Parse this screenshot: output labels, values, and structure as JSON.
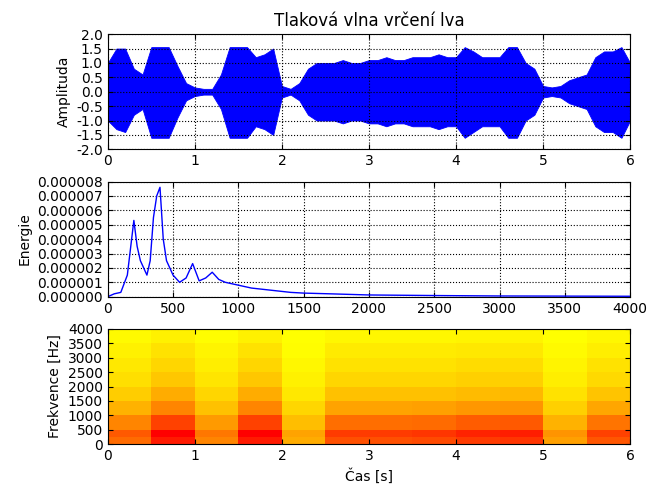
{
  "chart_data": [
    {
      "type": "area",
      "title": "Tlaková vlna vrčení lva",
      "y_label": "Amplituda",
      "color": "#0000ff",
      "grid": true,
      "x": [
        0.0,
        0.1,
        0.2,
        0.3,
        0.4,
        0.5,
        0.6,
        0.7,
        0.8,
        0.9,
        1.0,
        1.1,
        1.2,
        1.3,
        1.4,
        1.5,
        1.6,
        1.7,
        1.8,
        1.9,
        2.0,
        2.1,
        2.2,
        2.3,
        2.4,
        2.5,
        2.6,
        2.7,
        2.8,
        2.9,
        3.0,
        3.1,
        3.2,
        3.3,
        3.4,
        3.5,
        3.6,
        3.7,
        3.8,
        3.9,
        4.0,
        4.1,
        4.2,
        4.3,
        4.4,
        4.5,
        4.6,
        4.7,
        4.8,
        4.9,
        5.0,
        5.1,
        5.2,
        5.3,
        5.4,
        5.5,
        5.6,
        5.7,
        5.8,
        5.9,
        6.0
      ],
      "values": [
        1.0,
        1.5,
        1.5,
        0.8,
        0.6,
        1.55,
        1.55,
        1.55,
        0.9,
        0.3,
        0.15,
        0.1,
        0.1,
        0.6,
        1.55,
        1.55,
        1.55,
        1.2,
        1.3,
        1.5,
        0.2,
        0.1,
        0.3,
        0.8,
        1.0,
        1.0,
        1.0,
        1.1,
        1.0,
        1.0,
        1.1,
        1.1,
        1.2,
        1.1,
        1.1,
        1.2,
        1.2,
        1.2,
        1.3,
        1.2,
        1.2,
        1.55,
        1.4,
        1.2,
        1.2,
        1.2,
        1.55,
        1.55,
        1.0,
        0.8,
        0.2,
        0.15,
        0.2,
        0.4,
        0.5,
        0.6,
        1.2,
        1.4,
        1.4,
        1.55,
        1.0
      ],
      "lower": [
        -1.0,
        -1.3,
        -1.4,
        -0.8,
        -0.6,
        -1.6,
        -1.6,
        -1.6,
        -0.9,
        -0.3,
        -0.15,
        -0.1,
        -0.1,
        -0.6,
        -1.6,
        -1.6,
        -1.6,
        -1.2,
        -1.3,
        -1.5,
        -0.2,
        -0.1,
        -0.3,
        -0.8,
        -1.0,
        -1.0,
        -1.0,
        -1.1,
        -1.0,
        -1.0,
        -1.1,
        -1.1,
        -1.2,
        -1.1,
        -1.1,
        -1.2,
        -1.2,
        -1.2,
        -1.3,
        -1.2,
        -1.2,
        -1.6,
        -1.4,
        -1.2,
        -1.2,
        -1.2,
        -1.6,
        -1.6,
        -1.0,
        -0.8,
        -0.2,
        -0.15,
        -0.2,
        -0.4,
        -0.5,
        -0.6,
        -1.2,
        -1.4,
        -1.4,
        -1.6,
        -1.0
      ],
      "xlim": [
        0,
        6
      ],
      "xticks": [
        0,
        1,
        2,
        3,
        4,
        5,
        6
      ],
      "ylim": [
        -2.0,
        2.0
      ],
      "yticks": [
        {
          "value": -2.0,
          "label": "-2.0"
        },
        {
          "value": -1.5,
          "label": "-1.5"
        },
        {
          "value": -1.0,
          "label": "-1.0"
        },
        {
          "value": -0.5,
          "label": "-0.5"
        },
        {
          "value": 0.0,
          "label": "0.0"
        },
        {
          "value": 0.5,
          "label": "0.5"
        },
        {
          "value": 1.0,
          "label": "1.0"
        },
        {
          "value": 1.5,
          "label": "1.5"
        },
        {
          "value": 2.0,
          "label": "2.0"
        }
      ]
    },
    {
      "type": "line",
      "y_label": "Energie",
      "color": "#0000ff",
      "grid": true,
      "x": [
        0,
        50,
        100,
        150,
        200,
        225,
        250,
        300,
        325,
        350,
        375,
        400,
        425,
        450,
        500,
        550,
        600,
        650,
        700,
        750,
        800,
        850,
        900,
        1000,
        1100,
        1200,
        1300,
        1400,
        1500,
        1700,
        2000,
        2500,
        3000,
        3500,
        4000
      ],
      "values": [
        0,
        2e-07,
        3e-07,
        1.5e-06,
        5.3e-06,
        3.5e-06,
        2.5e-06,
        1.5e-06,
        2.5e-06,
        5.5e-06,
        7e-06,
        7.6e-06,
        4e-06,
        2.5e-06,
        1.5e-06,
        1e-06,
        1.3e-06,
        2.3e-06,
        1.1e-06,
        1.3e-06,
        1.7e-06,
        1.2e-06,
        1e-06,
        8e-07,
        6e-07,
        5e-07,
        4e-07,
        3e-07,
        2.5e-07,
        2e-07,
        1.2e-07,
        8e-08,
        5e-08,
        4e-08,
        3e-08
      ],
      "xlim": [
        0,
        4000
      ],
      "xticks": [
        0,
        500,
        1000,
        1500,
        2000,
        2500,
        3000,
        3500,
        4000
      ],
      "ylim": [
        0,
        8e-06
      ],
      "yticks": [
        {
          "value": 0,
          "label": "0.000000"
        },
        {
          "value": 1e-06,
          "label": "0.000001"
        },
        {
          "value": 2e-06,
          "label": "0.000002"
        },
        {
          "value": 3e-06,
          "label": "0.000003"
        },
        {
          "value": 4e-06,
          "label": "0.000004"
        },
        {
          "value": 5e-06,
          "label": "0.000005"
        },
        {
          "value": 6e-06,
          "label": "0.000006"
        },
        {
          "value": 7e-06,
          "label": "0.000007"
        },
        {
          "value": 8e-06,
          "label": "0.000008"
        }
      ]
    },
    {
      "type": "heatmap",
      "x_label": "Čas [s]",
      "y_label": "Frekvence [Hz]",
      "x_edges": [
        0,
        0.5,
        1.0,
        1.5,
        2.0,
        2.5,
        3.0,
        3.5,
        4.0,
        4.5,
        5.0,
        5.5,
        6.0
      ],
      "y_edges": [
        0,
        250,
        500,
        1000,
        1500,
        2000,
        2500,
        3000,
        3500,
        4000
      ],
      "cells": [
        [
          0.54,
          0.81,
          0.45,
          0.81,
          0.32,
          0.63,
          0.63,
          0.65,
          0.7,
          0.72,
          0.36,
          0.61
        ],
        [
          0.6,
          0.9,
          0.5,
          0.9,
          0.35,
          0.7,
          0.7,
          0.72,
          0.78,
          0.8,
          0.4,
          0.68
        ],
        [
          0.45,
          0.68,
          0.38,
          0.68,
          0.26,
          0.53,
          0.53,
          0.54,
          0.59,
          0.6,
          0.3,
          0.51
        ],
        [
          0.3,
          0.45,
          0.25,
          0.45,
          0.18,
          0.35,
          0.35,
          0.36,
          0.39,
          0.4,
          0.2,
          0.34
        ],
        [
          0.21,
          0.32,
          0.18,
          0.32,
          0.12,
          0.25,
          0.25,
          0.25,
          0.27,
          0.28,
          0.14,
          0.24
        ],
        [
          0.15,
          0.23,
          0.13,
          0.23,
          0.09,
          0.18,
          0.18,
          0.18,
          0.2,
          0.2,
          0.1,
          0.17
        ],
        [
          0.12,
          0.18,
          0.1,
          0.18,
          0.07,
          0.14,
          0.14,
          0.14,
          0.16,
          0.16,
          0.08,
          0.14
        ],
        [
          0.09,
          0.14,
          0.08,
          0.14,
          0.05,
          0.11,
          0.11,
          0.11,
          0.12,
          0.12,
          0.06,
          0.1
        ],
        [
          0.06,
          0.09,
          0.05,
          0.09,
          0.04,
          0.07,
          0.07,
          0.07,
          0.08,
          0.08,
          0.04,
          0.07
        ]
      ],
      "xlim": [
        0,
        6
      ],
      "xticks": [
        0,
        1,
        2,
        3,
        4,
        5,
        6
      ],
      "ylim": [
        0,
        4000
      ],
      "yticks": [
        0,
        500,
        1000,
        1500,
        2000,
        2500,
        3000,
        3500,
        4000
      ]
    }
  ]
}
